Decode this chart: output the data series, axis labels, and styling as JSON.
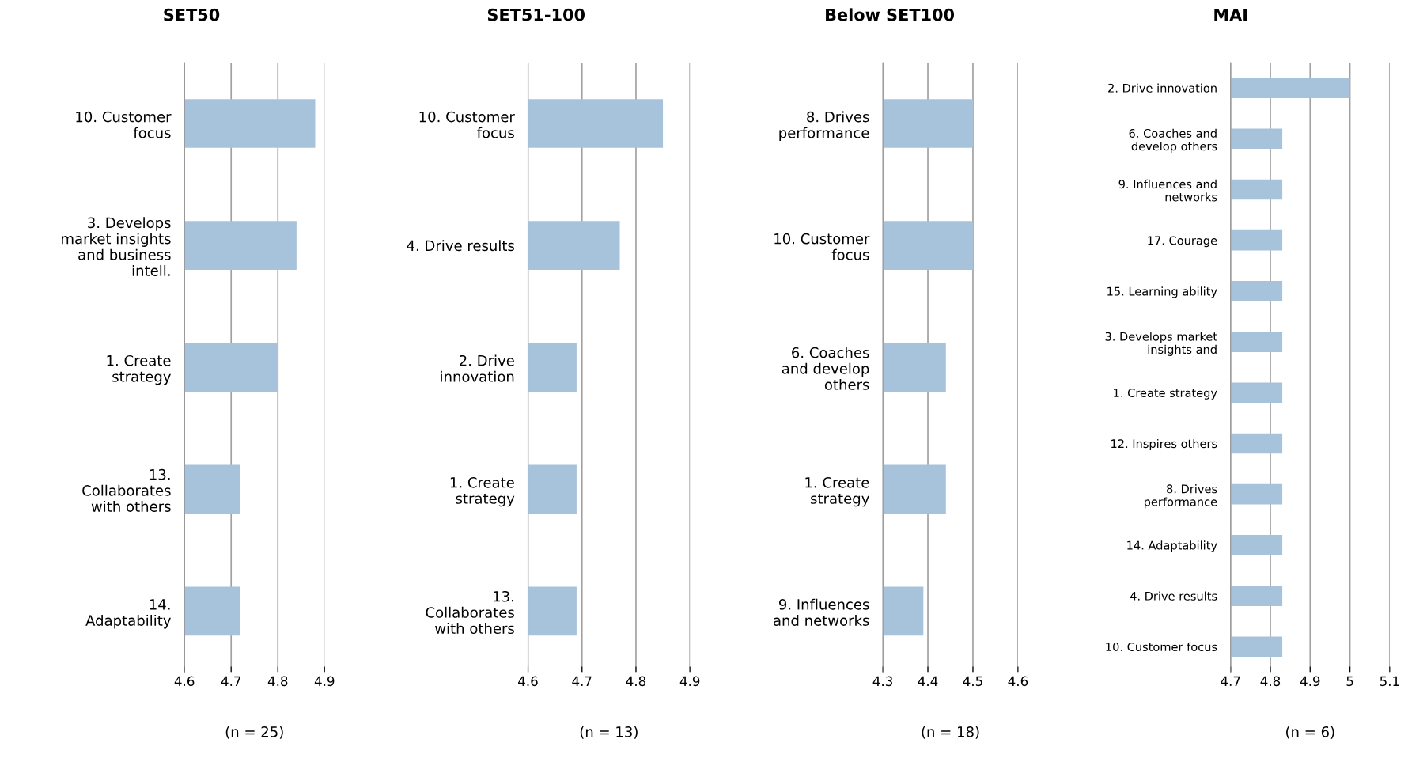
{
  "chart_data": [
    {
      "type": "bar",
      "orientation": "horizontal",
      "title": "SET50",
      "categories": [
        "10. Customer\nfocus",
        "3. Develops\nmarket insights\nand business\nintell.",
        "1. Create\nstrategy",
        "13.\nCollaborates\nwith others",
        "14.\nAdaptability"
      ],
      "values": [
        4.88,
        4.84,
        4.8,
        4.72,
        4.72
      ],
      "color": "#a7c3dc",
      "xlim": [
        4.6,
        4.9
      ],
      "xticks": [
        4.6,
        4.7,
        4.8,
        4.9
      ],
      "grid": "x",
      "annotations": [
        "(n = 25)"
      ]
    },
    {
      "type": "bar",
      "orientation": "horizontal",
      "title": "SET51-100",
      "categories": [
        "10. Customer\nfocus",
        "4. Drive results",
        "2. Drive\ninnovation",
        "1. Create\nstrategy",
        "13.\nCollaborates\nwith others"
      ],
      "values": [
        4.85,
        4.77,
        4.69,
        4.69,
        4.69
      ],
      "color": "#a7c3dc",
      "xlim": [
        4.6,
        4.9
      ],
      "xticks": [
        4.6,
        4.7,
        4.8,
        4.9
      ],
      "grid": "x",
      "annotations": [
        "(n = 13)"
      ]
    },
    {
      "type": "bar",
      "orientation": "horizontal",
      "title": "Below SET100",
      "categories": [
        "8. Drives\nperformance",
        "10. Customer\nfocus",
        "6. Coaches\nand develop\nothers",
        "1. Create\nstrategy",
        "9. Influences\nand networks"
      ],
      "values": [
        4.5,
        4.5,
        4.44,
        4.44,
        4.39
      ],
      "color": "#a7c3dc",
      "xlim": [
        4.3,
        4.6
      ],
      "xticks": [
        4.3,
        4.4,
        4.5,
        4.6
      ],
      "grid": "x",
      "annotations": [
        "(n = 18)"
      ]
    },
    {
      "type": "bar",
      "orientation": "horizontal",
      "title": "MAI",
      "categories": [
        "2. Drive innovation",
        "6. Coaches and\ndevelop others",
        "9. Influences and\nnetworks",
        "17. Courage",
        "15. Learning ability",
        "3. Develops market\ninsights and",
        "1. Create strategy",
        "12. Inspires others",
        "8. Drives\nperformance",
        "14. Adaptability",
        "4. Drive results",
        "10. Customer focus"
      ],
      "values": [
        5.0,
        4.83,
        4.83,
        4.83,
        4.83,
        4.83,
        4.83,
        4.83,
        4.83,
        4.83,
        4.83,
        4.83
      ],
      "color": "#a7c3dc",
      "xlim": [
        4.7,
        5.1
      ],
      "xticks": [
        4.7,
        4.8,
        4.9,
        5,
        5.1
      ],
      "grid": "x",
      "annotations": [
        "(n = 6)"
      ]
    }
  ]
}
